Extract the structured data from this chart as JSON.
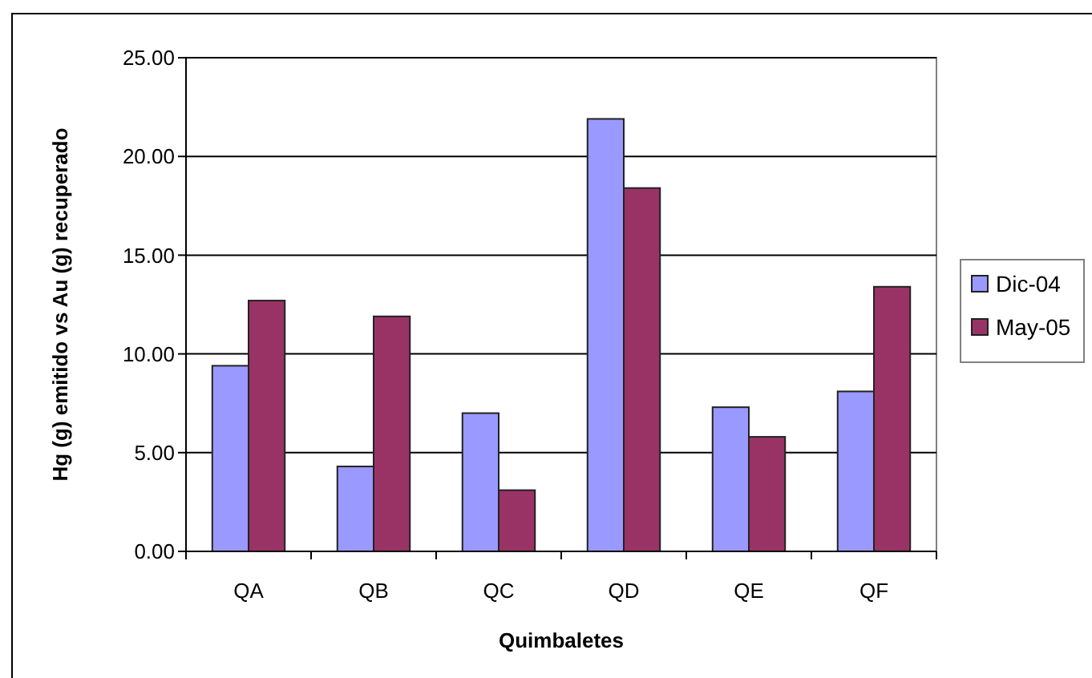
{
  "chart_data": {
    "type": "bar",
    "xlabel": "Quimbaletes",
    "ylabel": "Hg (g) emitido vs Au (g) recuperado",
    "categories": [
      "QA",
      "QB",
      "QC",
      "QD",
      "QE",
      "QF"
    ],
    "series": [
      {
        "name": "Dic-04",
        "color": "#9999ff",
        "values": [
          9.4,
          4.3,
          7.0,
          21.9,
          7.3,
          8.1
        ]
      },
      {
        "name": "May-05",
        "color": "#993366",
        "values": [
          12.7,
          11.9,
          3.1,
          18.4,
          5.8,
          13.4
        ]
      }
    ],
    "ylim": [
      0,
      25
    ],
    "yticks": [
      {
        "value": 0,
        "label": "0.00"
      },
      {
        "value": 5,
        "label": "5.00"
      },
      {
        "value": 10,
        "label": "10.00"
      },
      {
        "value": 15,
        "label": "15.00"
      },
      {
        "value": 20,
        "label": "20.00"
      },
      {
        "value": 25,
        "label": "25.00"
      }
    ],
    "grid": "y",
    "legend": "right"
  }
}
